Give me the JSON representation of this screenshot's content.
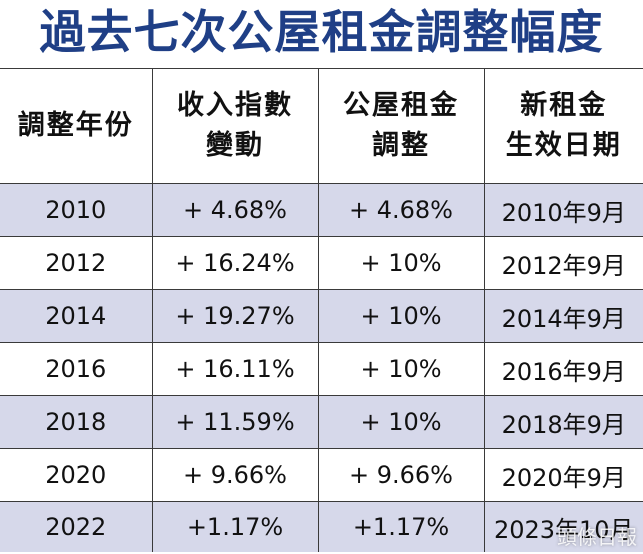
{
  "title": "過去七次公屋租金調整幅度",
  "columns": [
    {
      "line1": "調整年份",
      "line2": ""
    },
    {
      "line1": "收入指數",
      "line2": "變動"
    },
    {
      "line1": "公屋租金",
      "line2": "調整"
    },
    {
      "line1": "新租金",
      "line2": "生效日期"
    }
  ],
  "rows": [
    {
      "year": "2010",
      "income_change": "+ 4.68%",
      "rent_adjustment": "+ 4.68%",
      "effective_date": "2010年9月"
    },
    {
      "year": "2012",
      "income_change": "+ 16.24%",
      "rent_adjustment": "+ 10%",
      "effective_date": "2012年9月"
    },
    {
      "year": "2014",
      "income_change": "+ 19.27%",
      "rent_adjustment": "+ 10%",
      "effective_date": "2014年9月"
    },
    {
      "year": "2016",
      "income_change": "+ 16.11%",
      "rent_adjustment": "+ 10%",
      "effective_date": "2016年9月"
    },
    {
      "year": "2018",
      "income_change": "+ 11.59%",
      "rent_adjustment": "+ 10%",
      "effective_date": "2018年9月"
    },
    {
      "year": "2020",
      "income_change": "+ 9.66%",
      "rent_adjustment": "+ 9.66%",
      "effective_date": "2020年9月"
    },
    {
      "year": "2022",
      "income_change": "+1.17%",
      "rent_adjustment": "+1.17%",
      "effective_date": "2023年10月"
    }
  ],
  "watermark": "頭條日報",
  "colors": {
    "title": "#1f3f86",
    "stripe": "#d6d8ea",
    "grid": "#3a3a3a"
  }
}
